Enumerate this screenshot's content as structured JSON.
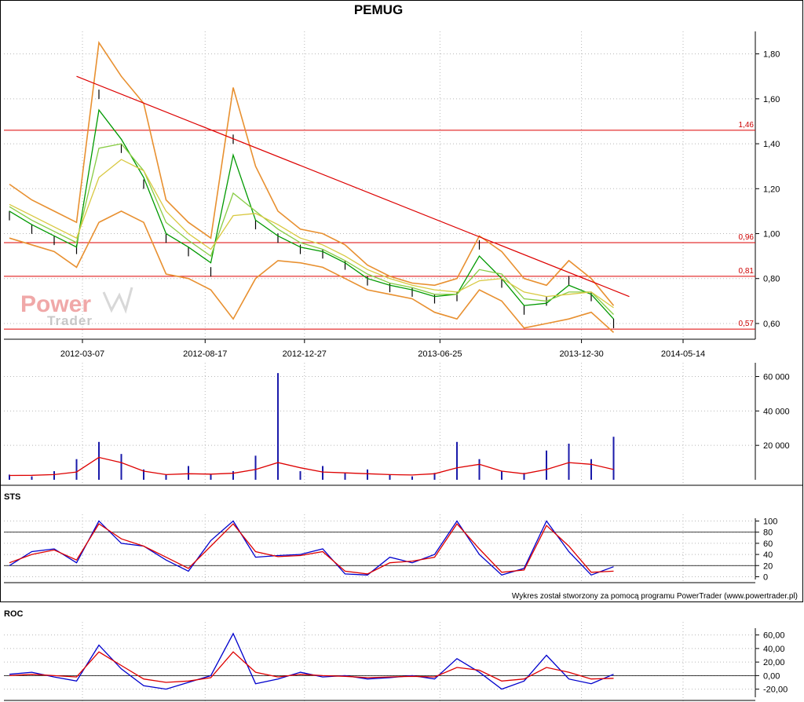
{
  "chart_data": [
    {
      "type": "line",
      "panel": "price",
      "title": "PEMUG",
      "x_ticks": [
        "2012-03-07",
        "2012-08-17",
        "2012-12-27",
        "2013-06-25",
        "2013-12-30",
        "2014-05-14"
      ],
      "y_ticks": [
        "0,60",
        "0,80",
        "1,00",
        "1,20",
        "1,40",
        "1,60",
        "1,80"
      ],
      "ylim": [
        0.53,
        1.9
      ],
      "grid": true,
      "x": [
        "2011-12",
        "2012-01",
        "2012-02",
        "2012-03",
        "2012-04",
        "2012-05",
        "2012-06",
        "2012-07",
        "2012-08",
        "2012-09",
        "2012-10",
        "2012-11",
        "2012-12",
        "2013-01",
        "2013-02",
        "2013-03",
        "2013-04",
        "2013-05",
        "2013-06",
        "2013-07",
        "2013-08",
        "2013-09",
        "2013-10",
        "2013-11",
        "2013-12",
        "2014-01",
        "2014-02",
        "2014-03"
      ],
      "levels": [
        {
          "label": "1,46",
          "value": 1.46
        },
        {
          "label": "0,96",
          "value": 0.96
        },
        {
          "label": "0,81",
          "value": 0.81
        },
        {
          "label": "0,57",
          "value": 0.575
        }
      ],
      "trendline": {
        "from": {
          "x": "2012-03",
          "y": 1.7
        },
        "to": {
          "x": "2014-03",
          "y": 0.72
        }
      },
      "series": [
        {
          "kind": "close",
          "color": "#000000",
          "values": [
            1.08,
            1.02,
            0.97,
            0.93,
            1.62,
            1.38,
            1.22,
            0.98,
            0.92,
            0.83,
            1.42,
            1.04,
            0.98,
            0.93,
            0.91,
            0.86,
            0.79,
            0.76,
            0.74,
            0.71,
            0.72,
            0.95,
            0.78,
            0.66,
            0.7,
            0.79,
            0.72,
            0.6
          ]
        },
        {
          "kind": "short_ma",
          "color": "#009900",
          "values": [
            1.1,
            1.04,
            0.99,
            0.94,
            1.55,
            1.42,
            1.25,
            1.0,
            0.94,
            0.87,
            1.35,
            1.06,
            0.99,
            0.94,
            0.92,
            0.87,
            0.8,
            0.77,
            0.75,
            0.72,
            0.73,
            0.9,
            0.8,
            0.68,
            0.69,
            0.77,
            0.73,
            0.62
          ]
        },
        {
          "kind": "mid_ma",
          "color": "#88cc44",
          "values": [
            1.12,
            1.06,
            1.01,
            0.96,
            1.38,
            1.4,
            1.28,
            1.05,
            0.97,
            0.9,
            1.18,
            1.1,
            1.02,
            0.96,
            0.93,
            0.88,
            0.82,
            0.78,
            0.76,
            0.73,
            0.73,
            0.84,
            0.82,
            0.71,
            0.7,
            0.74,
            0.74,
            0.64
          ]
        },
        {
          "kind": "long_ma",
          "color": "#d8c840",
          "values": [
            1.13,
            1.08,
            1.03,
            0.98,
            1.25,
            1.33,
            1.28,
            1.1,
            1.0,
            0.93,
            1.08,
            1.09,
            1.04,
            0.98,
            0.95,
            0.9,
            0.84,
            0.8,
            0.77,
            0.75,
            0.74,
            0.79,
            0.8,
            0.74,
            0.72,
            0.73,
            0.74,
            0.67
          ]
        },
        {
          "kind": "band_upper",
          "color": "#e89030",
          "values": [
            1.22,
            1.15,
            1.1,
            1.05,
            1.85,
            1.7,
            1.58,
            1.15,
            1.05,
            0.98,
            1.65,
            1.3,
            1.1,
            1.02,
            1.0,
            0.95,
            0.86,
            0.81,
            0.78,
            0.77,
            0.8,
            0.99,
            0.92,
            0.8,
            0.77,
            0.88,
            0.8,
            0.68
          ]
        },
        {
          "kind": "band_lower",
          "color": "#e89030",
          "values": [
            0.98,
            0.95,
            0.92,
            0.85,
            1.05,
            1.1,
            1.05,
            0.82,
            0.8,
            0.75,
            0.62,
            0.8,
            0.88,
            0.87,
            0.85,
            0.8,
            0.75,
            0.73,
            0.71,
            0.65,
            0.62,
            0.75,
            0.7,
            0.58,
            0.6,
            0.62,
            0.65,
            0.56
          ]
        }
      ]
    },
    {
      "type": "bar",
      "panel": "volume",
      "y_ticks": [
        "20 000",
        "40 000",
        "60 000"
      ],
      "ylim": [
        0,
        68000
      ],
      "x": [
        "2011-12",
        "2012-01",
        "2012-02",
        "2012-03",
        "2012-04",
        "2012-05",
        "2012-06",
        "2012-07",
        "2012-08",
        "2012-09",
        "2012-10",
        "2012-11",
        "2012-12",
        "2013-01",
        "2013-02",
        "2013-03",
        "2013-04",
        "2013-05",
        "2013-06",
        "2013-07",
        "2013-08",
        "2013-09",
        "2013-10",
        "2013-11",
        "2013-12",
        "2014-01",
        "2014-02",
        "2014-03"
      ],
      "values": [
        3000,
        2000,
        5000,
        12000,
        22000,
        15000,
        6000,
        3000,
        8000,
        3000,
        5000,
        14000,
        62000,
        5000,
        8000,
        4000,
        6000,
        3000,
        2000,
        4000,
        22000,
        12000,
        5000,
        4000,
        17000,
        21000,
        12000,
        25000
      ],
      "average": [
        2500,
        2600,
        3000,
        4500,
        13000,
        10000,
        5000,
        3000,
        3500,
        3300,
        3800,
        6000,
        10000,
        7000,
        4500,
        4000,
        3500,
        3000,
        2800,
        3500,
        7000,
        9000,
        5000,
        3500,
        6000,
        10000,
        9000,
        6000
      ]
    },
    {
      "type": "line",
      "panel": "STS",
      "y_ticks": [
        "0",
        "20",
        "40",
        "60",
        "80",
        "100"
      ],
      "ylim": [
        -5,
        105
      ],
      "levels": [
        80,
        20
      ],
      "x": [
        "2011-12",
        "2012-01",
        "2012-02",
        "2012-03",
        "2012-04",
        "2012-05",
        "2012-06",
        "2012-07",
        "2012-08",
        "2012-09",
        "2012-10",
        "2012-11",
        "2012-12",
        "2013-01",
        "2013-02",
        "2013-03",
        "2013-04",
        "2013-05",
        "2013-06",
        "2013-07",
        "2013-08",
        "2013-09",
        "2013-10",
        "2013-11",
        "2013-12",
        "2014-01",
        "2014-02",
        "2014-03"
      ],
      "series": [
        {
          "color": "#0000cc",
          "values": [
            20,
            45,
            50,
            25,
            100,
            60,
            55,
            30,
            10,
            65,
            100,
            35,
            38,
            40,
            50,
            5,
            3,
            35,
            25,
            40,
            100,
            40,
            3,
            15,
            100,
            45,
            3,
            18
          ]
        },
        {
          "color": "#dd0000",
          "values": [
            25,
            40,
            48,
            30,
            95,
            68,
            55,
            35,
            15,
            55,
            95,
            45,
            36,
            38,
            45,
            10,
            5,
            25,
            28,
            35,
            95,
            50,
            8,
            12,
            92,
            55,
            8,
            10
          ]
        }
      ]
    },
    {
      "type": "line",
      "panel": "ROC",
      "y_ticks": [
        "-20,00",
        "0,00",
        "20,00",
        "40,00",
        "60,00"
      ],
      "ylim": [
        -32,
        70
      ],
      "levels": [
        0
      ],
      "x": [
        "2011-12",
        "2012-01",
        "2012-02",
        "2012-03",
        "2012-04",
        "2012-05",
        "2012-06",
        "2012-07",
        "2012-08",
        "2012-09",
        "2012-10",
        "2012-11",
        "2012-12",
        "2013-01",
        "2013-02",
        "2013-03",
        "2013-04",
        "2013-05",
        "2013-06",
        "2013-07",
        "2013-08",
        "2013-09",
        "2013-10",
        "2013-11",
        "2013-12",
        "2014-01",
        "2014-02",
        "2014-03"
      ],
      "series": [
        {
          "color": "#0000cc",
          "values": [
            2,
            5,
            -2,
            -8,
            45,
            10,
            -15,
            -20,
            -10,
            0,
            62,
            -12,
            -5,
            5,
            -2,
            0,
            -5,
            -3,
            0,
            -5,
            25,
            5,
            -20,
            -8,
            30,
            -5,
            -12,
            2
          ]
        },
        {
          "color": "#dd0000",
          "values": [
            0,
            2,
            0,
            -2,
            35,
            15,
            -5,
            -10,
            -8,
            -3,
            35,
            5,
            -2,
            2,
            0,
            -1,
            -3,
            -2,
            -1,
            -2,
            12,
            8,
            -8,
            -5,
            12,
            5,
            -5,
            -4
          ]
        }
      ]
    }
  ],
  "panel_labels": {
    "sts": "STS",
    "roc": "ROC"
  },
  "credit": "Wykres został stworzony za pomocą programu PowerTrader (www.powertrader.pl)",
  "watermark": {
    "line1": "Power",
    "line2": "Trader"
  }
}
